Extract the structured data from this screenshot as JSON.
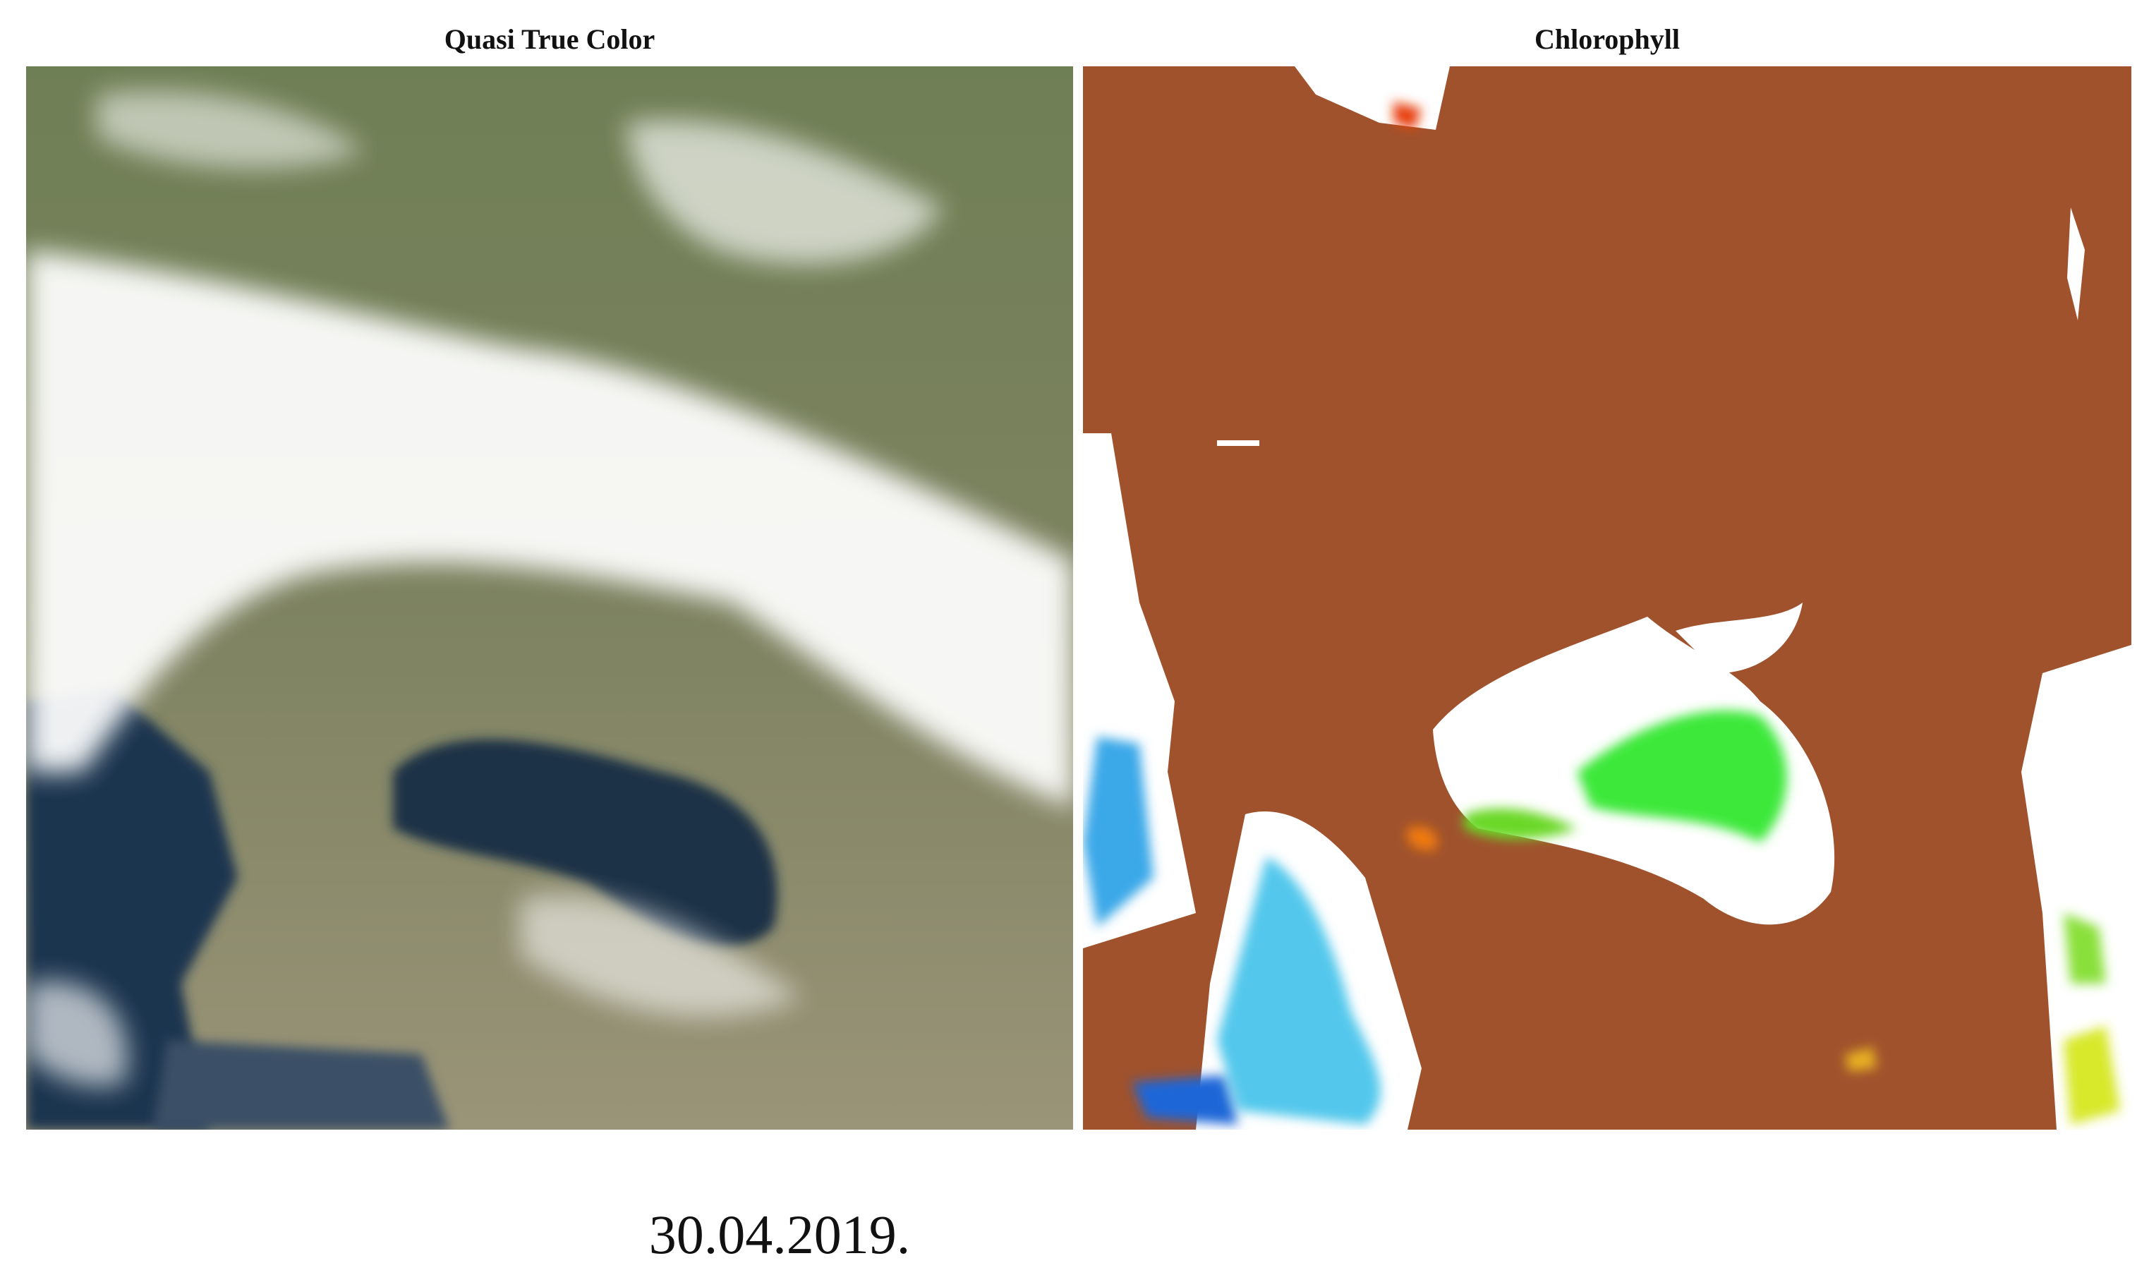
{
  "panels": [
    {
      "title": "Quasi True Color"
    },
    {
      "title": "Chlorophyll"
    }
  ],
  "caption": "30.04.2019."
}
